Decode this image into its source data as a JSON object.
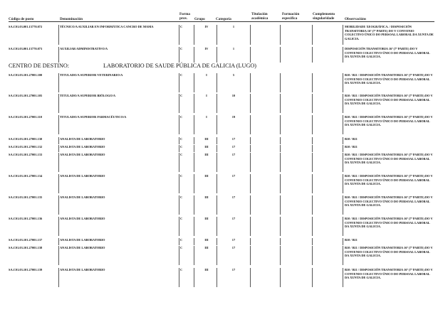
{
  "headers": {
    "code": "Código de posto",
    "denominacion": "Denominación",
    "forma": "Forma prov.",
    "grupo": "Grupo",
    "categoria": "Categoría",
    "titulacion": "Titulación académica",
    "formacion": "Formación específica",
    "complemento": "Complemento singularidade",
    "observacions": "Observacións"
  },
  "rows_top": [
    {
      "code": "SA.C01.03.001.15770.072",
      "den": "TÉCNICO/A AUXILIAR EN INFORMÁTICA CANCRO DE MAMA",
      "forma": "C",
      "grupo": "IV",
      "cat": "1",
      "obs": "MOBILIDADE XEOGRÁFICA. / DISPOSICIÓN TRANSITORIA 16ª (7ª PARTE) DO V CONVENIO COLECTIVO ÚNICO DO PERSOAL LABORAL DA XUNTA DE GALICIA."
    },
    {
      "code": "SA.C01.03.001.15770.073",
      "den": "AUXILIAR ADMINISTRATIVO/A",
      "forma": "C",
      "grupo": "IV",
      "cat": "1",
      "obs": "DISPOSICIÓN TRANSITORIA 16ª (7ª PARTE) DO V CONVENIO COLECTIVO ÚNICO DO PERSOAL LABORAL DA XUNTA DE GALICIA."
    }
  ],
  "section": {
    "label": "CENTRO DE DESTINO:",
    "name": "LABORATORIO DE SAUDE PÚBLICA DE GALICIA (LUGO)"
  },
  "rows": [
    {
      "code": "SA.C01.03.101.27001.100",
      "den": "TITULADO/A SUPERIOR VETERINARIO/A",
      "forma": "C",
      "grupo": "I",
      "cat": "5",
      "obs": "B10 / B11 / DISPOSICIÓN TRANSITORIA 16ª (7ª PARTE) DO V CONVENIO COLECTIVO ÚNICO DO PERSOAL LABORAL DA XUNTA DE GALICIA."
    },
    {
      "code": "SA.C01.03.101.27001.105",
      "den": "TITULADO/A SUPERIOR BIÓLOGO/A",
      "forma": "C",
      "grupo": "I",
      "cat": "10",
      "obs": "B10 / B11 / DISPOSICIÓN TRANSITORIA 16ª (7ª PARTE) DO V CONVENIO COLECTIVO ÚNICO DO PERSOAL LABORAL DA XUNTA DE GALICIA."
    },
    {
      "code": "SA.C01.03.101.27001.110",
      "den": "TITULADO/A SUPERIOR FARMACÉUTICO/A",
      "forma": "C",
      "grupo": "I",
      "cat": "19",
      "obs": "B10 / B11 / DISPOSICIÓN TRANSITORIA 16ª (7ª PARTE) DO V CONVENIO COLECTIVO ÚNICO DO PERSOAL LABORAL DA XUNTA DE GALICIA."
    },
    {
      "code": "SA.C01.03.101.27001.130",
      "den": "ANALISTA DE LABORATORIO",
      "forma": "C",
      "grupo": "III",
      "cat": "17",
      "obs": "B10 / B11"
    },
    {
      "code": "SA.C01.03.101.27001.132",
      "den": "ANALISTA DE LABORATORIO",
      "forma": "C",
      "grupo": "III",
      "cat": "17",
      "obs": "B10 / B11"
    },
    {
      "code": "SA.C01.03.101.27001.133",
      "den": "ANALISTA DE LABORATORIO",
      "forma": "C",
      "grupo": "III",
      "cat": "17",
      "obs": "B10 / B11 / DISPOSICIÓN TRANSITORIA 16ª (7ª PARTE) DO V CONVENIO COLECTIVO ÚNICO DO PERSOAL LABORAL DA XUNTA DE GALICIA."
    },
    {
      "code": "SA.C01.03.101.27001.134",
      "den": "ANALISTA DE LABORATORIO",
      "forma": "C",
      "grupo": "III",
      "cat": "17",
      "obs": "B10 / B11 / DISPOSICIÓN TRANSITORIA 16ª (7ª PARTE) DO V CONVENIO COLECTIVO ÚNICO DO PERSOAL LABORAL DA XUNTA DE GALICIA."
    },
    {
      "code": "SA.C01.03.101.27001.135",
      "den": "ANALISTA DE LABORATORIO",
      "forma": "C",
      "grupo": "III",
      "cat": "17",
      "obs": "B10 / B11 / DISPOSICIÓN TRANSITORIA 16ª (7ª PARTE) DO V CONVENIO COLECTIVO ÚNICO DO PERSOAL LABORAL DA XUNTA DE GALICIA."
    },
    {
      "code": "SA.C01.03.101.27001.136",
      "den": "ANALISTA DE LABORATORIO",
      "forma": "C",
      "grupo": "III",
      "cat": "17",
      "obs": "B10 / B11 / DISPOSICIÓN TRANSITORIA 16ª (7ª PARTE) DO V CONVENIO COLECTIVO ÚNICO DO PERSOAL LABORAL DA XUNTA DE GALICIA."
    },
    {
      "code": "SA.C01.03.101.27001.137",
      "den": "ANALISTA DE LABORATORIO",
      "forma": "C",
      "grupo": "III",
      "cat": "17",
      "obs": "B10 / B11"
    },
    {
      "code": "SA.C01.03.101.27001.138",
      "den": "ANALISTA DE LABORATORIO",
      "forma": "C",
      "grupo": "III",
      "cat": "17",
      "obs": "B10 / B11 / DISPOSICIÓN TRANSITORIA 16ª (7ª PARTE) DO V CONVENIO COLECTIVO ÚNICO DO PERSOAL LABORAL DA XUNTA DE GALICIA."
    },
    {
      "code": "SA.C01.03.101.27001.139",
      "den": "ANALISTA DE LABORATORIO",
      "forma": "C",
      "grupo": "III",
      "cat": "17",
      "obs": "B10 / B11 / DISPOSICIÓN TRANSITORIA 16ª (7ª PARTE) DO V CONVENIO COLECTIVO ÚNICO DO PERSOAL LABORAL DA XUNTA DE GALICIA."
    }
  ]
}
